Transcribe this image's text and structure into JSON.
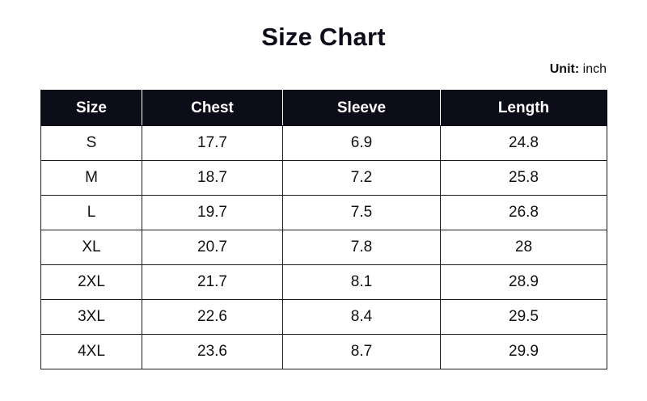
{
  "title": "Size Chart",
  "unit": {
    "label": "Unit:",
    "value": "inch"
  },
  "colors": {
    "header_background": "#0d0d1a",
    "header_text": "#ffffff",
    "border": "#1a1a1a",
    "text": "#111111"
  },
  "table": {
    "headers": [
      "Size",
      "Chest",
      "Sleeve",
      "Length"
    ],
    "rows": [
      [
        "S",
        "17.7",
        "6.9",
        "24.8"
      ],
      [
        "M",
        "18.7",
        "7.2",
        "25.8"
      ],
      [
        "L",
        "19.7",
        "7.5",
        "26.8"
      ],
      [
        "XL",
        "20.7",
        "7.8",
        "28"
      ],
      [
        "2XL",
        "21.7",
        "8.1",
        "28.9"
      ],
      [
        "3XL",
        "22.6",
        "8.4",
        "29.5"
      ],
      [
        "4XL",
        "23.6",
        "8.7",
        "29.9"
      ]
    ]
  }
}
